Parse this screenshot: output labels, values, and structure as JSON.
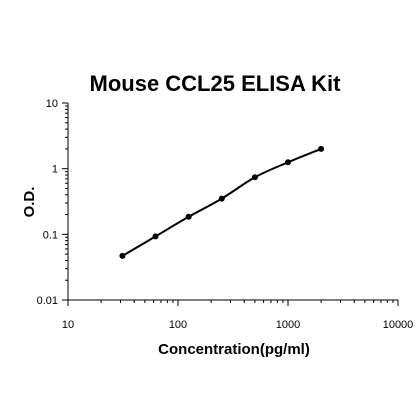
{
  "chart_data": {
    "type": "line",
    "title": "Mouse CCL25 ELISA Kit",
    "xlabel": "Concentration(pg/ml)",
    "ylabel": "O.D.",
    "xscale": "log",
    "yscale": "log",
    "xlim": [
      10,
      10000
    ],
    "ylim": [
      0.01,
      10
    ],
    "x_ticks": [
      {
        "value": 10,
        "label": "10"
      },
      {
        "value": 100,
        "label": "100"
      },
      {
        "value": 1000,
        "label": "1000"
      },
      {
        "value": 10000,
        "label": "10000"
      }
    ],
    "y_ticks": [
      {
        "value": 0.01,
        "label": "0.01"
      },
      {
        "value": 0.1,
        "label": "0.1"
      },
      {
        "value": 1,
        "label": "1"
      },
      {
        "value": 10,
        "label": "10"
      }
    ],
    "grid": false,
    "legend": "none",
    "series": [
      {
        "x": [
          31.25,
          62.5,
          125,
          250,
          500,
          1000,
          2000
        ],
        "y": [
          0.047,
          0.093,
          0.185,
          0.35,
          0.74,
          1.25,
          2.0
        ],
        "color": "#000000"
      }
    ]
  }
}
